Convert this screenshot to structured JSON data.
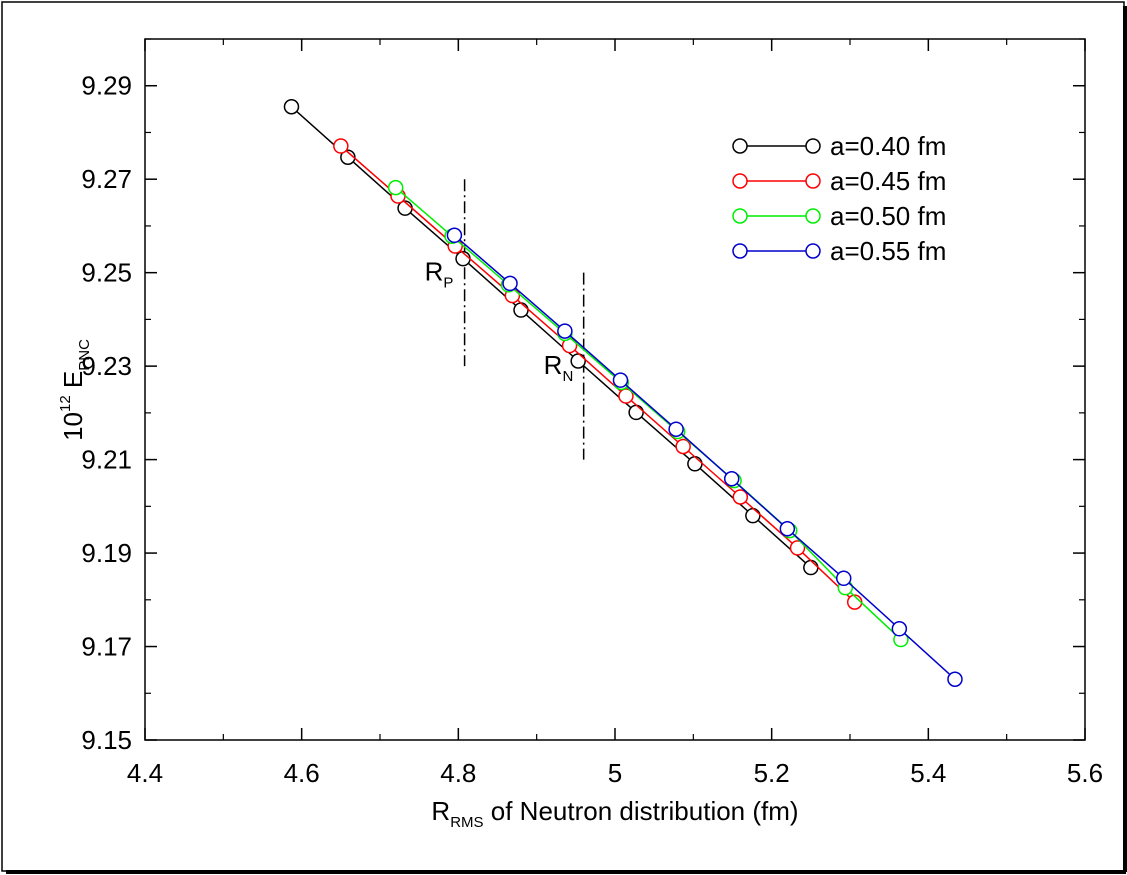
{
  "chart_data": {
    "type": "line",
    "xlabel": {
      "main": "R",
      "sub": "RMS",
      "rest": " of Neutron distribution (fm)"
    },
    "ylabel": {
      "prefix": "10",
      "sup": "12",
      "main": " E",
      "sub": "PNC"
    },
    "xlim": [
      4.4,
      5.6
    ],
    "ylim": [
      9.15,
      9.3
    ],
    "xticks": [
      4.4,
      4.6,
      4.8,
      5.0,
      5.2,
      5.4,
      5.6
    ],
    "xtick_labels": [
      "4.4",
      "4.6",
      "4.8",
      "5",
      "5.2",
      "5.4",
      "5.6"
    ],
    "yticks": [
      9.15,
      9.17,
      9.19,
      9.21,
      9.23,
      9.25,
      9.27,
      9.29
    ],
    "ytick_labels": [
      "9.15",
      "9.17",
      "9.19",
      "9.21",
      "9.23",
      "9.25",
      "9.27",
      "9.29"
    ],
    "grid": false,
    "legend_position": "top-right",
    "series": [
      {
        "name": "a=0.40 fm",
        "color": "#000000",
        "x": [
          4.587,
          4.659,
          4.732,
          4.806,
          4.88,
          4.953,
          5.027,
          5.102,
          5.176,
          5.25
        ],
        "y": [
          9.2855,
          9.2747,
          9.2638,
          9.253,
          9.242,
          9.2311,
          9.2201,
          9.2091,
          9.198,
          9.1869
        ]
      },
      {
        "name": "a=0.45 fm",
        "color": "#ff0000",
        "x": [
          4.65,
          4.723,
          4.796,
          4.869,
          4.942,
          5.014,
          5.087,
          5.16,
          5.233,
          5.306
        ],
        "y": [
          9.2771,
          9.2664,
          9.2557,
          9.2451,
          9.2344,
          9.2236,
          9.2128,
          9.202,
          9.1911,
          9.1795
        ]
      },
      {
        "name": "a=0.50 fm",
        "color": "#00ee00",
        "x": [
          4.72,
          4.792,
          4.864,
          4.936,
          5.008,
          5.08,
          5.152,
          5.223,
          5.294,
          5.365
        ],
        "y": [
          9.2682,
          9.2578,
          9.2474,
          9.237,
          9.2265,
          9.216,
          9.2055,
          9.1948,
          9.1826,
          9.1715
        ]
      },
      {
        "name": "a=0.55 fm",
        "color": "#0000cc",
        "x": [
          4.795,
          4.866,
          4.936,
          5.007,
          5.078,
          5.149,
          5.22,
          5.292,
          5.363,
          5.434
        ],
        "y": [
          9.258,
          9.2477,
          9.2375,
          9.227,
          9.2165,
          9.2059,
          9.1952,
          9.1846,
          9.1738,
          9.163
        ]
      }
    ],
    "annotations": [
      {
        "name": "rp",
        "main": "R",
        "sub": "P",
        "line_x": 4.808,
        "line_y": [
          9.23,
          9.27
        ]
      },
      {
        "name": "rn",
        "main": "R",
        "sub": "N",
        "line_x": 4.96,
        "line_y": [
          9.21,
          9.25
        ]
      }
    ]
  }
}
